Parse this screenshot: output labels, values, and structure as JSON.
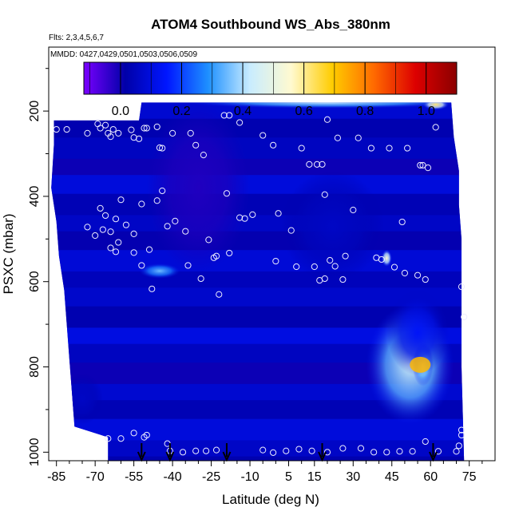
{
  "chart_data": {
    "type": "heatmap",
    "title": "ATOM4 Southbound WS_Abs_380nm",
    "flights_note": "Flts: 2,3,4,5,6,7",
    "dates_note": "MMDD: 0427,0429,0501,0503,0506,0509",
    "xlabel": "Latitude (deg N)",
    "ylabel": "PSXC (mbar)",
    "xlim": [
      -88,
      85
    ],
    "ylim": [
      1020,
      50
    ],
    "x_ticks": [
      -85,
      -70,
      -55,
      -40,
      -25,
      -10,
      5,
      15,
      30,
      45,
      60,
      75
    ],
    "y_ticks": [
      200,
      400,
      600,
      800,
      1000
    ],
    "colorbar": {
      "range": [
        -0.12,
        1.1
      ],
      "ticks": [
        0.0,
        0.2,
        0.4,
        0.6,
        0.8,
        1.0
      ],
      "tick_labels": [
        "0.0",
        "0.2",
        "0.4",
        "0.6",
        "0.8",
        "1.0"
      ],
      "colors": [
        "#7a00ff",
        "#0000a8",
        "#0016ff",
        "#1e90ff",
        "#c8ecff",
        "#fffad0",
        "#ffcc00",
        "#ff6a00",
        "#dd0000",
        "#8b0000"
      ]
    },
    "west_edge": [
      {
        "p": 200,
        "lat": -86
      },
      {
        "p": 280,
        "lat": -86
      },
      {
        "p": 380,
        "lat": -87
      },
      {
        "p": 460,
        "lat": -85
      },
      {
        "p": 540,
        "lat": -84
      },
      {
        "p": 620,
        "lat": -82
      },
      {
        "p": 700,
        "lat": -81
      },
      {
        "p": 780,
        "lat": -80
      },
      {
        "p": 860,
        "lat": -79
      },
      {
        "p": 940,
        "lat": -78
      },
      {
        "p": 965,
        "lat": -65
      },
      {
        "p": 1020,
        "lat": -65
      }
    ],
    "east_edge": [
      {
        "p": 180,
        "lat": 68
      },
      {
        "p": 260,
        "lat": 69
      },
      {
        "p": 340,
        "lat": 71
      },
      {
        "p": 420,
        "lat": 71
      },
      {
        "p": 500,
        "lat": 72
      },
      {
        "p": 600,
        "lat": 72
      },
      {
        "p": 800,
        "lat": 72
      },
      {
        "p": 1020,
        "lat": 73
      }
    ],
    "top_edge": [
      {
        "lat": -86,
        "p": 222
      },
      {
        "lat": -53,
        "p": 222
      },
      {
        "lat": -52,
        "p": 180
      },
      {
        "lat": 68,
        "p": 180
      }
    ],
    "features": [
      {
        "lat": 20,
        "p": 180,
        "sx": 55,
        "sy": 14,
        "value": 0.42
      },
      {
        "lat": 62,
        "p": 185,
        "sx": 5,
        "sy": 12,
        "value": 0.62
      },
      {
        "lat": -45,
        "p": 575,
        "sx": 8,
        "sy": 18,
        "value": 0.35
      },
      {
        "lat": 52,
        "p": 795,
        "sx": 17,
        "sy": 140,
        "value": 0.45
      },
      {
        "lat": 57,
        "p": 795,
        "sx": 4,
        "sy": 50,
        "value": 0.45
      },
      {
        "lat": 55,
        "p": 720,
        "sx": 12,
        "sy": 100,
        "value": 0.14
      },
      {
        "lat": 43,
        "p": 545,
        "sx": 2,
        "sy": 20,
        "value": 0.55
      },
      {
        "lat": 22,
        "p": 470,
        "sx": 20,
        "sy": 130,
        "value": 0.06
      },
      {
        "lat": -75,
        "p": 875,
        "sx": 8,
        "sy": 60,
        "value": 0.06
      },
      {
        "lat": -30,
        "p": 380,
        "sx": 20,
        "sy": 200,
        "value": -0.02
      }
    ],
    "observations": [
      [
        -85,
        243
      ],
      [
        -81,
        243
      ],
      [
        -73,
        252
      ],
      [
        -69,
        230
      ],
      [
        -68,
        240
      ],
      [
        -66,
        233
      ],
      [
        -65,
        252
      ],
      [
        -64,
        260
      ],
      [
        -63,
        243
      ],
      [
        -61,
        252
      ],
      [
        -56,
        244
      ],
      [
        -55,
        262
      ],
      [
        -53,
        265
      ],
      [
        -51,
        240
      ],
      [
        -50,
        240
      ],
      [
        -46,
        237
      ],
      [
        -45,
        286
      ],
      [
        -44,
        287
      ],
      [
        -40,
        252
      ],
      [
        -33,
        252
      ],
      [
        -31,
        280
      ],
      [
        -28,
        303
      ],
      [
        -20,
        210
      ],
      [
        -18,
        210
      ],
      [
        -14,
        227
      ],
      [
        -5,
        257
      ],
      [
        -1,
        280
      ],
      [
        10,
        287
      ],
      [
        13,
        325
      ],
      [
        16,
        325
      ],
      [
        18,
        325
      ],
      [
        20,
        220
      ],
      [
        24,
        263
      ],
      [
        32,
        263
      ],
      [
        37,
        287
      ],
      [
        44,
        287
      ],
      [
        51,
        287
      ],
      [
        56,
        327
      ],
      [
        57,
        327
      ],
      [
        59,
        333
      ],
      [
        62,
        238
      ],
      [
        -73,
        472
      ],
      [
        -70,
        492
      ],
      [
        -68,
        428
      ],
      [
        -67,
        478
      ],
      [
        -66,
        445
      ],
      [
        -64,
        483
      ],
      [
        -62,
        453
      ],
      [
        -60,
        408
      ],
      [
        -61,
        508
      ],
      [
        -58,
        467
      ],
      [
        -55,
        488
      ],
      [
        -52,
        418
      ],
      [
        -46,
        410
      ],
      [
        -44,
        387
      ],
      [
        -42,
        470
      ],
      [
        -39,
        458
      ],
      [
        -35,
        482
      ],
      [
        -26,
        502
      ],
      [
        -19,
        393
      ],
      [
        -14,
        450
      ],
      [
        -12,
        452
      ],
      [
        -9,
        443
      ],
      [
        1,
        440
      ],
      [
        6,
        480
      ],
      [
        19,
        396
      ],
      [
        30,
        432
      ],
      [
        49,
        460
      ],
      [
        -64,
        521
      ],
      [
        -62,
        530
      ],
      [
        -55,
        532
      ],
      [
        -52,
        562
      ],
      [
        -49,
        525
      ],
      [
        -48,
        617
      ],
      [
        -34,
        562
      ],
      [
        -29,
        593
      ],
      [
        -24,
        544
      ],
      [
        -23,
        540
      ],
      [
        -22,
        630
      ],
      [
        -18,
        533
      ],
      [
        0,
        552
      ],
      [
        8,
        565
      ],
      [
        15,
        565
      ],
      [
        17,
        597
      ],
      [
        19,
        593
      ],
      [
        21,
        550
      ],
      [
        23,
        564
      ],
      [
        26,
        595
      ],
      [
        27,
        540
      ],
      [
        39,
        544
      ],
      [
        41,
        548
      ],
      [
        46,
        566
      ],
      [
        50,
        580
      ],
      [
        55,
        585
      ],
      [
        58,
        595
      ],
      [
        72,
        612
      ],
      [
        73,
        683
      ],
      [
        -65,
        968
      ],
      [
        -60,
        968
      ],
      [
        -55,
        955
      ],
      [
        -51,
        965
      ],
      [
        -50,
        960
      ],
      [
        -42,
        980
      ],
      [
        -41,
        997
      ],
      [
        -36,
        1000
      ],
      [
        -31,
        997
      ],
      [
        -27,
        997
      ],
      [
        -23,
        995
      ],
      [
        -5,
        995
      ],
      [
        -1,
        1001
      ],
      [
        4,
        997
      ],
      [
        9,
        993
      ],
      [
        14,
        997
      ],
      [
        20,
        1000
      ],
      [
        26,
        991
      ],
      [
        33,
        991
      ],
      [
        38,
        1000
      ],
      [
        43,
        1000
      ],
      [
        48,
        998
      ],
      [
        53,
        998
      ],
      [
        58,
        975
      ],
      [
        63,
        998
      ],
      [
        70,
        998
      ],
      [
        72,
        948
      ],
      [
        72,
        960
      ],
      [
        71,
        985
      ]
    ],
    "markers_lat": [
      -52,
      -41,
      -19,
      18,
      61
    ]
  }
}
